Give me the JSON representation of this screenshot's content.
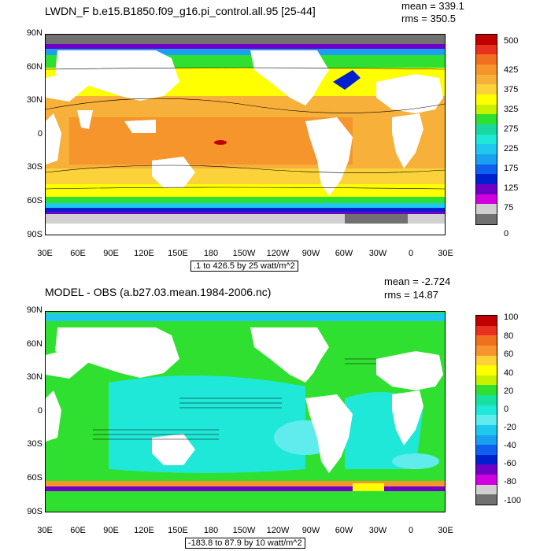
{
  "chart_data": [
    {
      "type": "heatmap",
      "title": "LWDN_F b.e15.B1850.f09_g16.pi_control.all.95 [25-44]",
      "stats": {
        "mean": "mean = 339.1",
        "rms": "rms = 350.5"
      },
      "subtitle": ".1 to 426.5 by 25 watt/m^2",
      "y_ticks": [
        "90N",
        "60N",
        "30N",
        "0",
        "30S",
        "60S",
        "90S"
      ],
      "x_ticks": [
        "30E",
        "60E",
        "90E",
        "120E",
        "150E",
        "180",
        "150W",
        "120W",
        "90W",
        "60W",
        "30W",
        "0",
        "30E"
      ],
      "colorbar": {
        "labels": [
          "500",
          "425",
          "375",
          "325",
          "275",
          "225",
          "175",
          "125",
          "75",
          "0"
        ],
        "colors": [
          "#c00000",
          "#e8301e",
          "#f07020",
          "#f5952b",
          "#f7b03a",
          "#fcd23a",
          "#ffff00",
          "#c8f000",
          "#30e030",
          "#18d8a0",
          "#20e8d8",
          "#20c8f0",
          "#1aa0f0",
          "#1060f0",
          "#0020d0",
          "#7000c8",
          "#d000e0",
          "#d0d0d0",
          "#707070"
        ]
      },
      "field_description": "Warm orange tropics (~375-425), yellow mid-latitudes, green/cyan/blue toward poles"
    },
    {
      "type": "heatmap",
      "title": "MODEL - OBS (a.b27.03.mean.1984-2006.nc)",
      "stats": {
        "mean": "mean = -2.724",
        "rms": "rms = 14.87"
      },
      "subtitle": "-183.8 to 87.9 by 10 watt/m^2",
      "y_ticks": [
        "90N",
        "60N",
        "30N",
        "0",
        "30S",
        "60S",
        "90S"
      ],
      "x_ticks": [
        "30E",
        "60E",
        "90E",
        "120E",
        "150E",
        "180",
        "150W",
        "120W",
        "90W",
        "60W",
        "30W",
        "0",
        "30E"
      ],
      "colorbar": {
        "labels": [
          "100",
          "80",
          "60",
          "40",
          "20",
          "0",
          "-20",
          "-40",
          "-60",
          "-80",
          "-100"
        ],
        "colors": [
          "#c00000",
          "#e8301e",
          "#f07020",
          "#f5952b",
          "#fcd23a",
          "#ffff00",
          "#c8f000",
          "#30e030",
          "#18e0a0",
          "#20e8d8",
          "#60ecec",
          "#20c8f0",
          "#1aa0f0",
          "#1060f0",
          "#0020d0",
          "#7000c8",
          "#d000e0",
          "#d0d0d0",
          "#707070"
        ]
      },
      "field_description": "Mostly green/cyan near zero with small negative patches"
    }
  ]
}
